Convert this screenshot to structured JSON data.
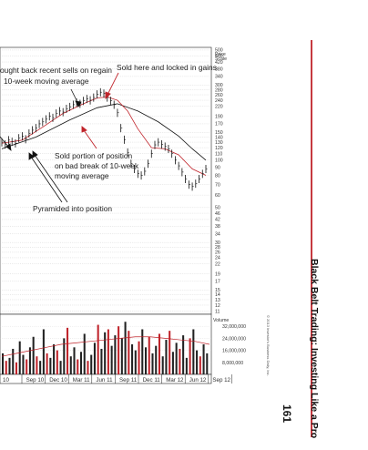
{
  "book": {
    "running_title": "Black Belt Trading: Investing Like a Pro",
    "page_number": "161",
    "accent_color": "#c0242b"
  },
  "chart_data": {
    "type": "line",
    "price_axis": {
      "label_line1": "Price",
      "label_line2": "Scale",
      "ticks": [
        500,
        460,
        420,
        380,
        340,
        300,
        280,
        260,
        240,
        220,
        190,
        170,
        150,
        140,
        130,
        120,
        110,
        100,
        90,
        80,
        70,
        60,
        50,
        46,
        42,
        38,
        34,
        30,
        28,
        26,
        24,
        22,
        19,
        17,
        15,
        14,
        13,
        12,
        11
      ],
      "scale": "log"
    },
    "volume_axis": {
      "label": "Volume",
      "ticks": [
        "32,000,000",
        "24,000,000",
        "16,000,000",
        "8,000,000"
      ]
    },
    "x_ticks": [
      "10",
      "Sep 10",
      "Dec 10",
      "Mar 11",
      "Jun 11",
      "Sep 11",
      "Dec 11",
      "Mar 12",
      "Jun 12",
      "Sep 12"
    ],
    "annotations": {
      "bought_back_1": "ought back recent sells on regain",
      "bought_back_2": "10-week moving average",
      "sold_here": "Sold here and locked in gains",
      "sold_portion_1": "Sold portion of position",
      "sold_portion_2": "on bad break of 10-week",
      "sold_portion_3": "moving average",
      "pyramided": "Pyramided into position"
    },
    "copyright": "© 2013 Investor's Business Daily, Inc.",
    "price_series": [
      [
        0,
        130
      ],
      [
        1,
        126
      ],
      [
        2,
        134
      ],
      [
        3,
        131
      ],
      [
        4,
        128
      ],
      [
        5,
        138
      ],
      [
        6,
        142
      ],
      [
        7,
        136
      ],
      [
        8,
        148
      ],
      [
        9,
        155
      ],
      [
        10,
        160
      ],
      [
        11,
        170
      ],
      [
        12,
        175
      ],
      [
        13,
        182
      ],
      [
        14,
        190
      ],
      [
        15,
        186
      ],
      [
        16,
        198
      ],
      [
        17,
        205
      ],
      [
        18,
        202
      ],
      [
        19,
        212
      ],
      [
        20,
        218
      ],
      [
        21,
        225
      ],
      [
        22,
        232
      ],
      [
        23,
        228
      ],
      [
        24,
        238
      ],
      [
        25,
        245
      ],
      [
        26,
        240
      ],
      [
        27,
        250
      ],
      [
        28,
        262
      ],
      [
        29,
        270
      ],
      [
        30,
        265
      ],
      [
        31,
        250
      ],
      [
        32,
        238
      ],
      [
        33,
        225
      ],
      [
        34,
        200
      ],
      [
        35,
        160
      ],
      [
        36,
        135
      ],
      [
        37,
        112
      ],
      [
        38,
        95
      ],
      [
        39,
        88
      ],
      [
        40,
        82
      ],
      [
        41,
        80
      ],
      [
        42,
        85
      ],
      [
        43,
        95
      ],
      [
        44,
        110
      ],
      [
        45,
        125
      ],
      [
        46,
        130
      ],
      [
        47,
        126
      ],
      [
        48,
        122
      ],
      [
        49,
        118
      ],
      [
        50,
        110
      ],
      [
        51,
        100
      ],
      [
        52,
        92
      ],
      [
        53,
        84
      ],
      [
        54,
        76
      ],
      [
        55,
        70
      ],
      [
        56,
        68
      ],
      [
        57,
        71
      ],
      [
        58,
        76
      ],
      [
        59,
        82
      ],
      [
        60,
        88
      ]
    ],
    "ma10_series": [
      [
        0,
        128
      ],
      [
        6,
        134
      ],
      [
        12,
        162
      ],
      [
        18,
        198
      ],
      [
        24,
        228
      ],
      [
        28,
        248
      ],
      [
        31,
        252
      ],
      [
        34,
        240
      ],
      [
        37,
        205
      ],
      [
        40,
        158
      ],
      [
        44,
        120
      ],
      [
        48,
        118
      ],
      [
        52,
        108
      ],
      [
        56,
        88
      ],
      [
        60,
        80
      ]
    ],
    "ma40_series": [
      [
        0,
        118
      ],
      [
        10,
        140
      ],
      [
        20,
        180
      ],
      [
        28,
        215
      ],
      [
        34,
        228
      ],
      [
        40,
        205
      ],
      [
        46,
        175
      ],
      [
        52,
        142
      ],
      [
        56,
        118
      ],
      [
        60,
        100
      ]
    ],
    "volume_bars": [
      14,
      9,
      11,
      17,
      8,
      22,
      13,
      10,
      18,
      25,
      12,
      9,
      30,
      14,
      11,
      20,
      16,
      9,
      24,
      31,
      12,
      18,
      10,
      15,
      27,
      9,
      13,
      21,
      33,
      17,
      28,
      30,
      19,
      26,
      32,
      24,
      35,
      29,
      20,
      16,
      22,
      30,
      18,
      25,
      14,
      19,
      27,
      12,
      23,
      29,
      15,
      21,
      17,
      26,
      11,
      24,
      30,
      16,
      12,
      20,
      14
    ],
    "volume_ma": [
      12,
      14,
      16,
      18,
      20,
      21,
      22,
      23,
      24,
      25,
      25,
      24,
      23,
      22,
      20
    ]
  }
}
